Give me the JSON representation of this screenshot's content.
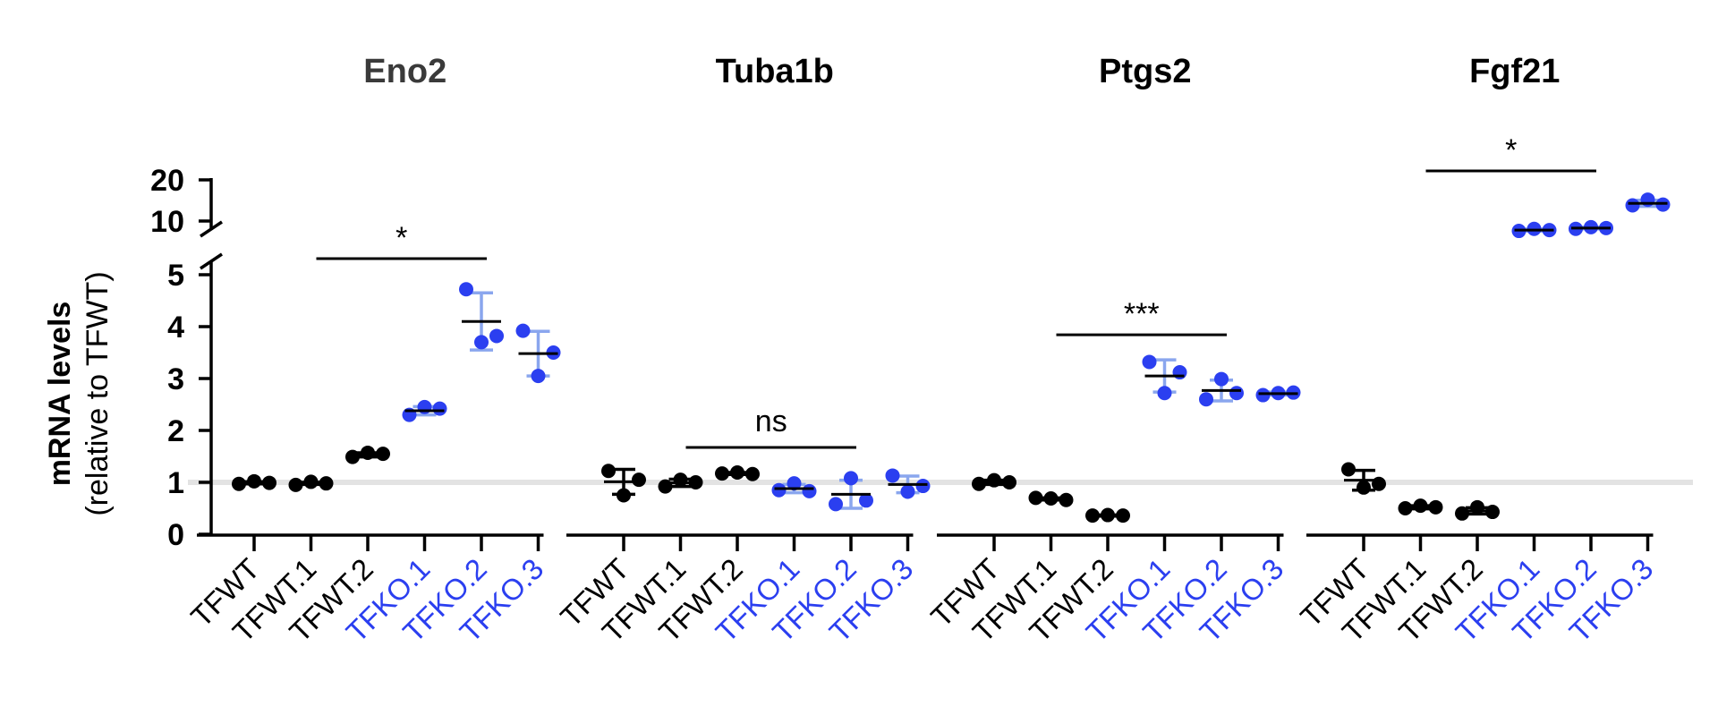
{
  "chart_data": {
    "type": "scatter",
    "ylabel": "mRNA levels",
    "ylabel_sub": "(relative to TFWT)",
    "y_axis": {
      "segments": [
        {
          "range": [
            0,
            5
          ],
          "ticks": [
            0,
            1,
            2,
            3,
            4,
            5
          ]
        },
        {
          "range": [
            9,
            20
          ],
          "ticks": [
            10,
            20
          ]
        }
      ],
      "tick_labels": [
        "0",
        "1",
        "2",
        "3",
        "4",
        "5",
        "10",
        "20"
      ],
      "broken": true
    },
    "reference_line": 1,
    "categories": [
      "TFWT",
      "TFWT.1",
      "TFWT.2",
      "TFKO.1",
      "TFKO.2",
      "TFKO.3"
    ],
    "category_groups": [
      "TFWT",
      "TFWT",
      "TFWT",
      "TFKO",
      "TFKO",
      "TFKO"
    ],
    "colors": {
      "TFWT": "#000000",
      "TFKO": "#2b3ff0",
      "errorbar_TFKO": "#8aa6ee",
      "reference_line": "#e3e3e3"
    },
    "panels": [
      {
        "title": "Eno2",
        "points": [
          [
            0.97,
            1.02,
            0.99
          ],
          [
            0.95,
            1.01,
            0.98
          ],
          [
            1.49,
            1.57,
            1.55
          ],
          [
            2.3,
            2.45,
            2.42
          ],
          [
            4.72,
            3.7,
            3.82
          ],
          [
            3.92,
            3.05,
            3.5
          ]
        ],
        "mean": [
          0.99,
          0.98,
          1.53,
          2.38,
          4.1,
          3.48
        ],
        "sd": [
          0.02,
          0.02,
          0.04,
          0.08,
          0.55,
          0.43
        ],
        "significance": {
          "label": "*",
          "from": 1,
          "to": 4
        }
      },
      {
        "title": "Tuba1b",
        "points": [
          [
            1.22,
            0.75,
            1.05
          ],
          [
            0.92,
            1.05,
            1.0
          ],
          [
            1.17,
            1.19,
            1.16
          ],
          [
            0.85,
            0.98,
            0.83
          ],
          [
            0.58,
            1.08,
            0.65
          ],
          [
            1.13,
            0.82,
            0.93
          ]
        ],
        "mean": [
          1.01,
          0.99,
          1.17,
          0.88,
          0.77,
          0.96
        ],
        "sd": [
          0.24,
          0.07,
          0.02,
          0.08,
          0.27,
          0.16
        ],
        "significance": {
          "label": "ns",
          "from": 1,
          "to": 4
        }
      },
      {
        "title": "Ptgs2",
        "points": [
          [
            0.97,
            1.04,
            1.0
          ],
          [
            0.7,
            0.69,
            0.66
          ],
          [
            0.36,
            0.37,
            0.36
          ],
          [
            3.32,
            2.72,
            3.12
          ],
          [
            2.6,
            2.99,
            2.72
          ],
          [
            2.68,
            2.72,
            2.73
          ]
        ],
        "mean": [
          1.0,
          0.68,
          0.36,
          3.05,
          2.77,
          2.71
        ],
        "sd": [
          0.04,
          0.02,
          0.01,
          0.31,
          0.2,
          0.03
        ],
        "significance": {
          "label": "***",
          "from": 1,
          "to": 4
        }
      },
      {
        "title": "Fgf21",
        "points": [
          [
            1.25,
            0.9,
            0.97
          ],
          [
            0.5,
            0.55,
            0.52
          ],
          [
            0.4,
            0.52,
            0.43
          ],
          [
            7.6,
            8.1,
            7.8
          ],
          [
            8.1,
            8.5,
            8.3
          ],
          [
            13.8,
            15.2,
            14.0
          ]
        ],
        "mean": [
          1.04,
          0.52,
          0.45,
          7.8,
          8.3,
          14.3
        ],
        "sd": [
          0.19,
          0.03,
          0.06,
          0.25,
          0.2,
          0.75
        ],
        "significance": {
          "label": "*",
          "from": 1,
          "to": 4
        }
      }
    ]
  }
}
